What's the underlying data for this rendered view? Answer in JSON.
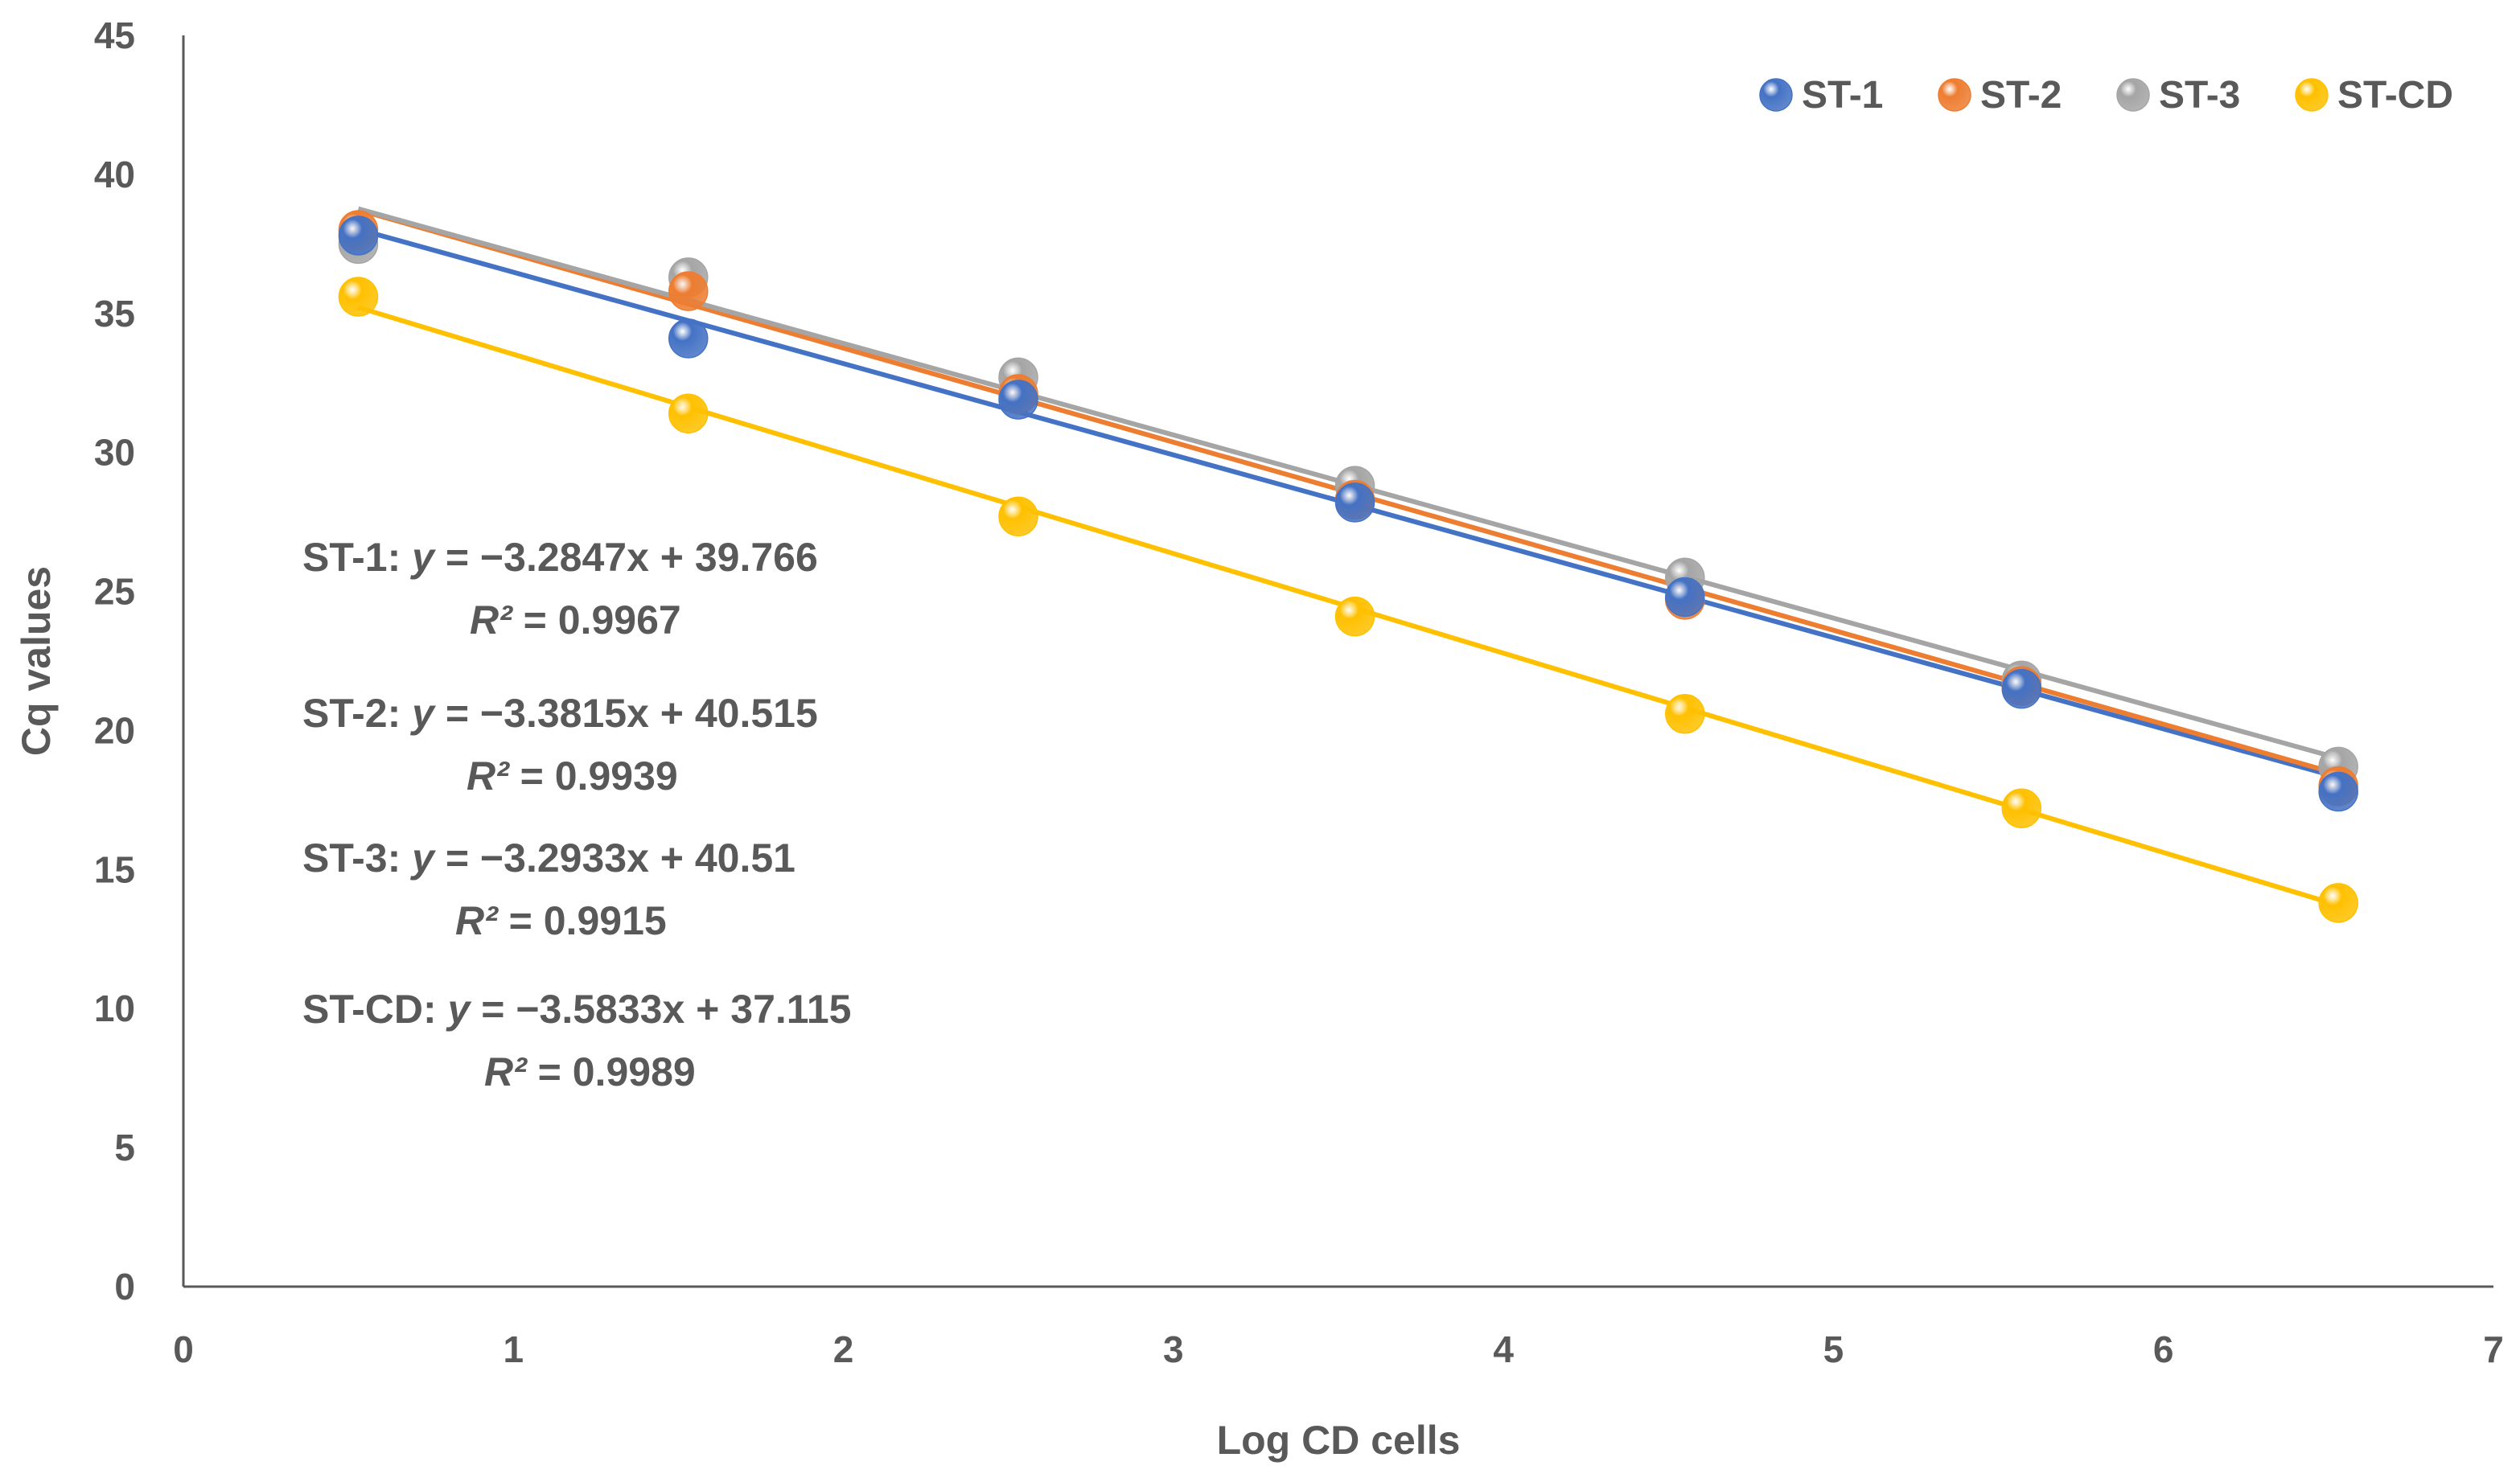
{
  "chart_data": {
    "type": "scatter",
    "xlabel": "Log CD cells",
    "ylabel": "Cq values",
    "xlim": [
      0,
      7
    ],
    "ylim": [
      0,
      45
    ],
    "xticks": [
      0,
      1,
      2,
      3,
      4,
      5,
      6,
      7
    ],
    "yticks": [
      0,
      5,
      10,
      15,
      20,
      25,
      30,
      35,
      40,
      45
    ],
    "grid": false,
    "legend_position": "top-right",
    "trendline": "linear",
    "series": [
      {
        "name": "ST-1",
        "color": "#4472C4",
        "x": [
          0.53,
          1.53,
          2.53,
          3.55,
          4.55,
          5.57,
          6.53
        ],
        "y": [
          37.8,
          34.1,
          31.9,
          28.2,
          24.8,
          21.5,
          17.8
        ],
        "fit": {
          "slope": -3.2847,
          "intercept": 39.766
        }
      },
      {
        "name": "ST-2",
        "color": "#ED7D31",
        "x": [
          0.53,
          1.53,
          2.53,
          3.55,
          4.55,
          5.57,
          6.53
        ],
        "y": [
          38.0,
          35.8,
          32.1,
          28.3,
          24.7,
          21.6,
          18.0
        ],
        "fit": {
          "slope": -3.3815,
          "intercept": 40.515
        }
      },
      {
        "name": "ST-3",
        "color": "#A5A5A5",
        "x": [
          0.53,
          1.53,
          2.53,
          3.55,
          4.55,
          5.57,
          6.53
        ],
        "y": [
          37.5,
          36.3,
          32.7,
          28.8,
          25.5,
          21.8,
          18.7
        ],
        "fit": {
          "slope": -3.2933,
          "intercept": 40.51
        }
      },
      {
        "name": "ST-CD",
        "color": "#FFC000",
        "x": [
          0.53,
          1.53,
          2.53,
          3.55,
          4.55,
          5.57,
          6.53
        ],
        "y": [
          35.6,
          31.4,
          27.7,
          24.1,
          20.6,
          17.2,
          13.8
        ],
        "fit": {
          "slope": -3.5833,
          "intercept": 37.115
        }
      }
    ],
    "annotations": [
      {
        "prefix": "ST-1: ",
        "var": "y",
        "equation": " = −3.2847x + 39.766",
        "r2_label": "R²",
        "r2_value": " = 0.9967"
      },
      {
        "prefix": "ST-2: ",
        "var": "y",
        "equation": " = −3.3815x + 40.515",
        "r2_label": "R²",
        "r2_value": " = 0.9939"
      },
      {
        "prefix": "ST-3: ",
        "var": "y",
        "equation": " = −3.2933x + 40.51",
        "r2_label": "R²",
        "r2_value": " = 0.9915"
      },
      {
        "prefix": "ST-CD: ",
        "var": "y",
        "equation": " = −3.5833x + 37.115",
        "r2_label": "R²",
        "r2_value": " = 0.9989"
      }
    ]
  }
}
